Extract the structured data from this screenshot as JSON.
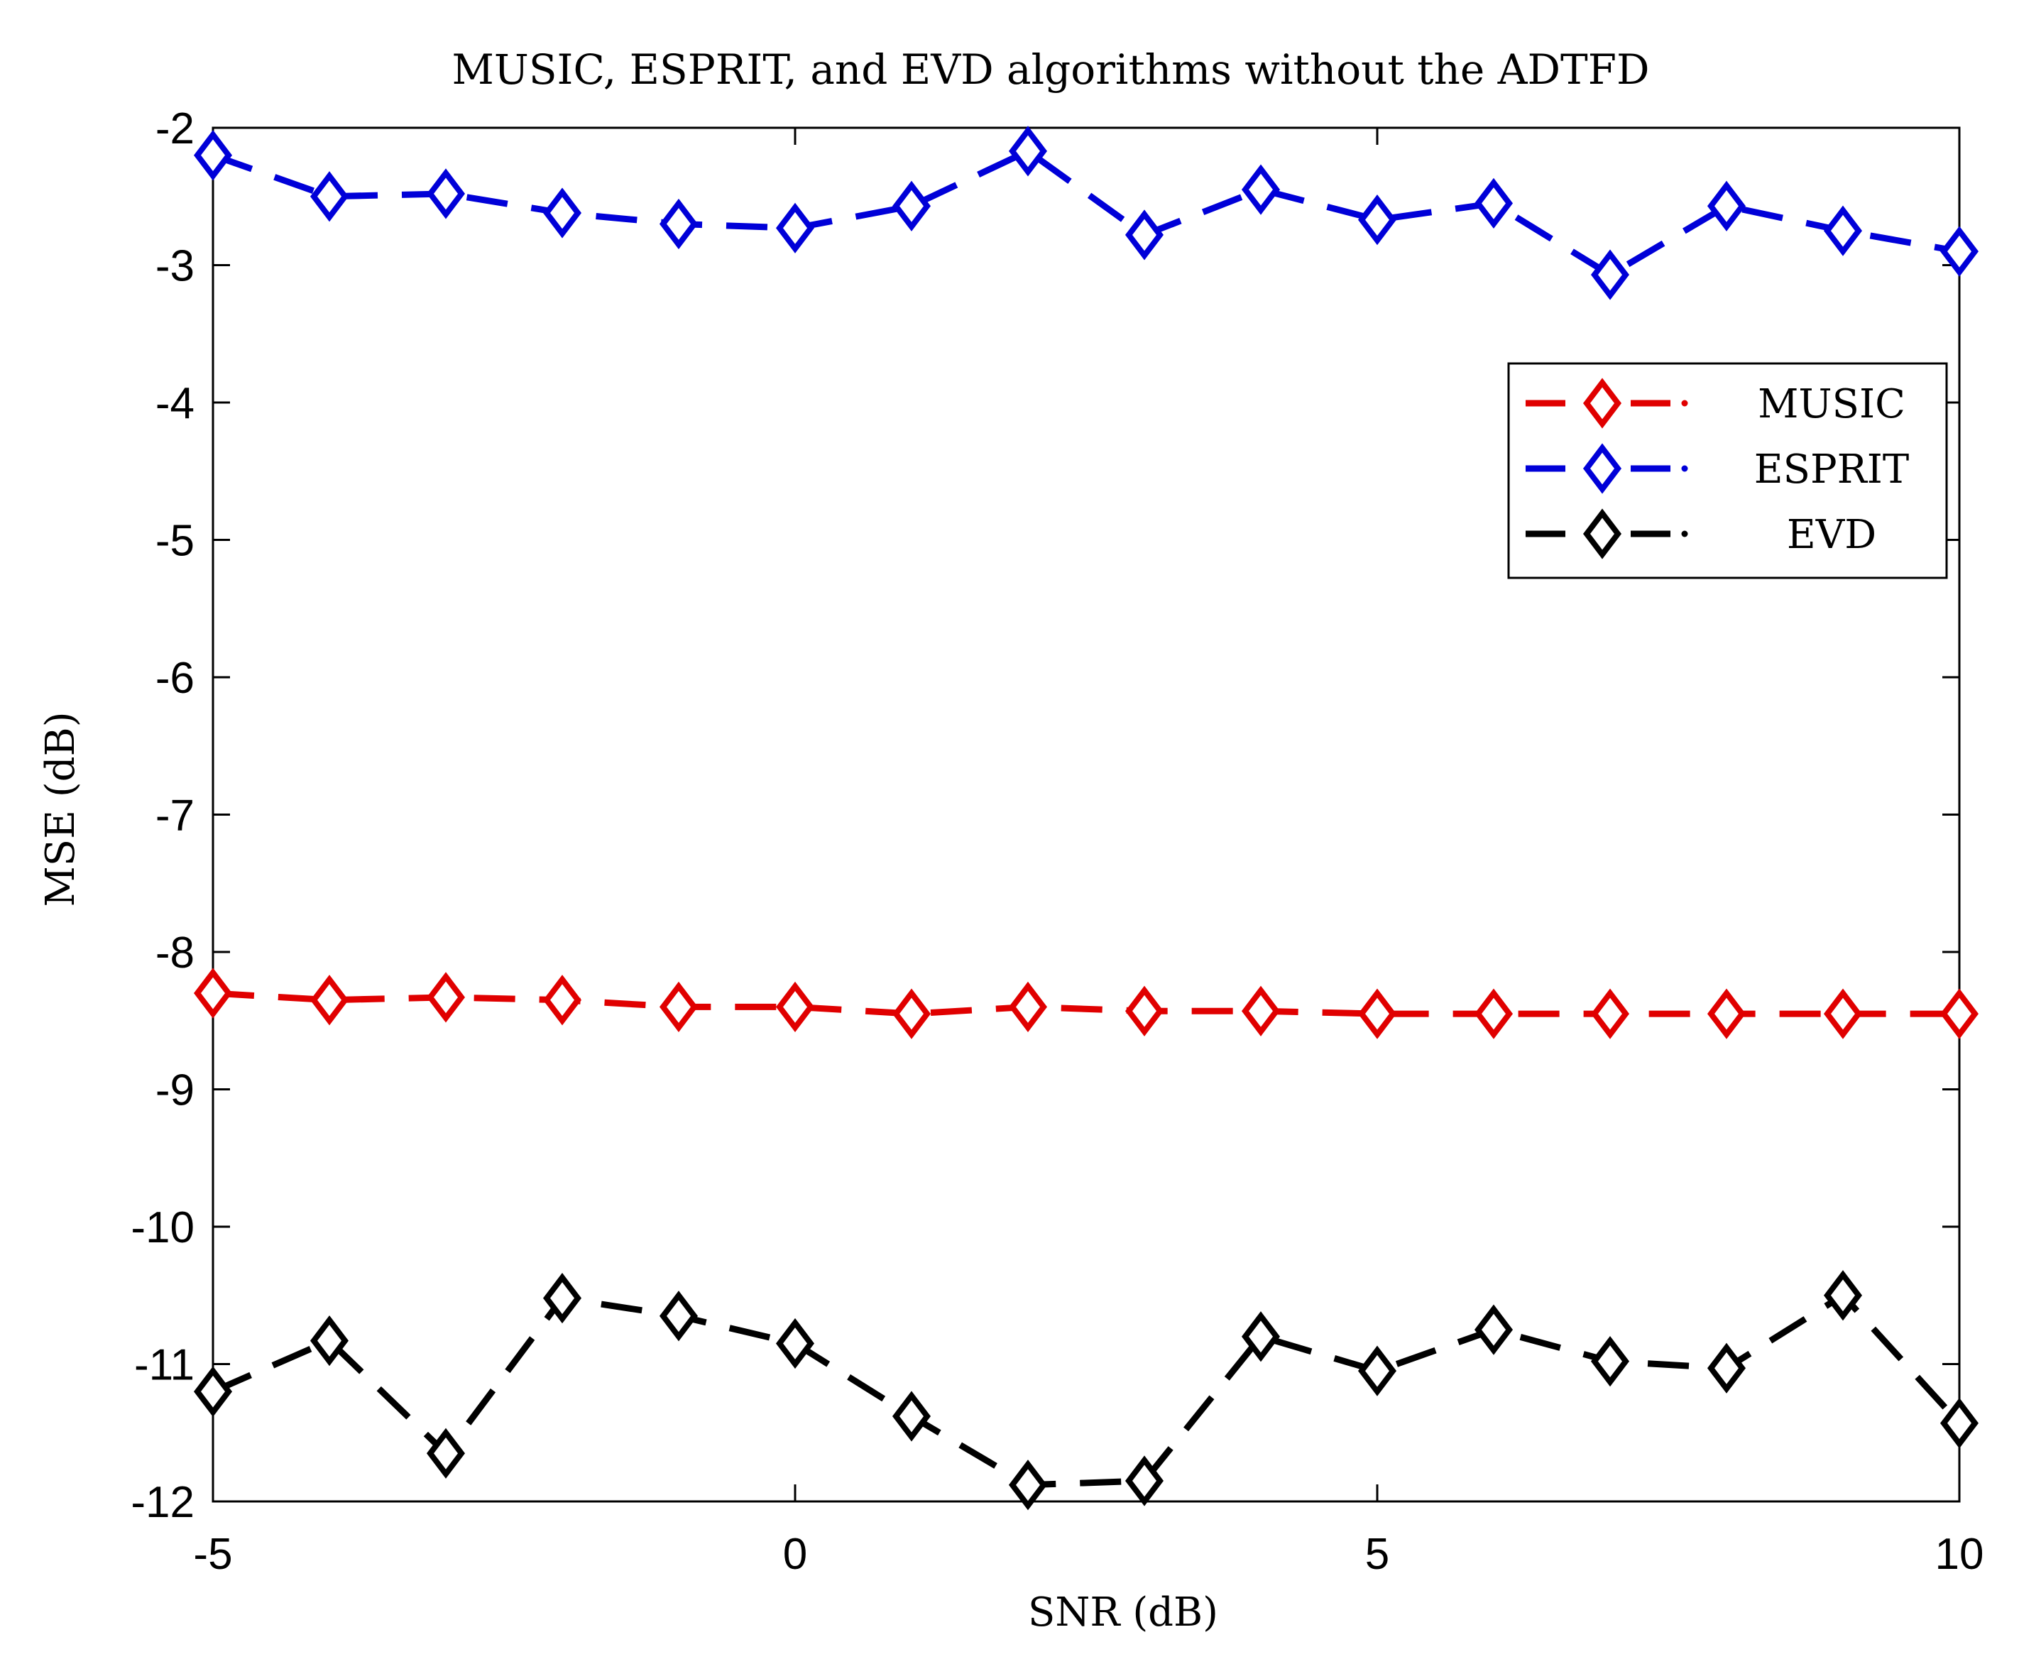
{
  "chart_data": {
    "type": "line",
    "title": "MUSIC, ESPRIT, and EVD algorithms without the ADTFD",
    "xlabel": "SNR (dB)",
    "ylabel": "MSE (dB)",
    "xlim": [
      -5,
      10
    ],
    "ylim": [
      -12,
      -2
    ],
    "xticks": [
      -5,
      0,
      5,
      10
    ],
    "yticks": [
      -2,
      -3,
      -4,
      -5,
      -6,
      -7,
      -8,
      -9,
      -10,
      -11,
      -12
    ],
    "grid": false,
    "legend_position": "top-right",
    "x": [
      -5,
      -4,
      -3,
      -2,
      -1,
      0,
      1,
      2,
      3,
      4,
      5,
      6,
      7,
      8,
      9,
      10
    ],
    "series": [
      {
        "name": "MUSIC",
        "color": "#e00000",
        "marker": "diamond",
        "line_style": "dash-dot",
        "values": [
          -8.3,
          -8.35,
          -8.33,
          -8.35,
          -8.4,
          -8.4,
          -8.45,
          -8.4,
          -8.43,
          -8.43,
          -8.45,
          -8.45,
          -8.45,
          -8.45,
          -8.45,
          -8.45
        ]
      },
      {
        "name": "ESPRIT",
        "color": "#0000d8",
        "marker": "diamond",
        "line_style": "dash-dot",
        "values": [
          -2.2,
          -2.5,
          -2.48,
          -2.62,
          -2.7,
          -2.73,
          -2.57,
          -2.17,
          -2.78,
          -2.45,
          -2.67,
          -2.55,
          -3.07,
          -2.57,
          -2.75,
          -2.9
        ]
      },
      {
        "name": "EVD",
        "color": "#000000",
        "marker": "diamond",
        "line_style": "dash-dot",
        "values": [
          -11.2,
          -10.83,
          -11.65,
          -10.52,
          -10.65,
          -10.85,
          -11.38,
          -11.88,
          -11.85,
          -10.8,
          -11.05,
          -10.75,
          -10.98,
          -11.03,
          -10.5,
          -11.43
        ]
      }
    ]
  }
}
